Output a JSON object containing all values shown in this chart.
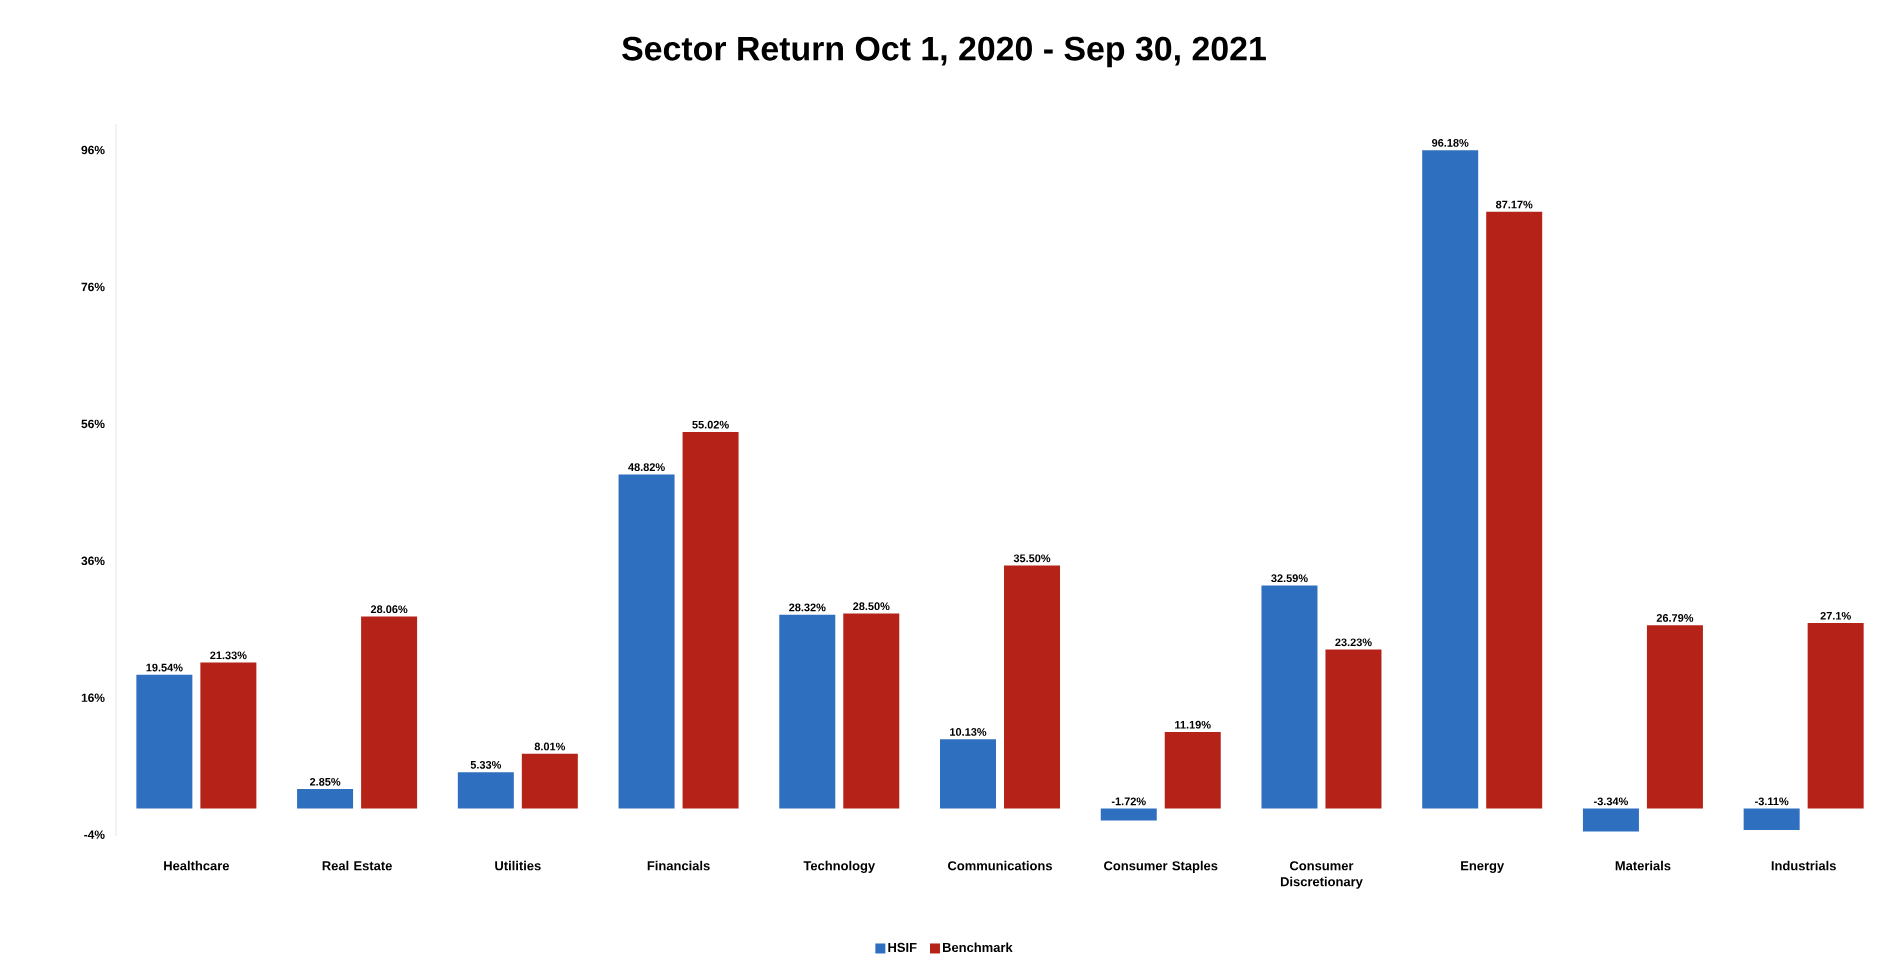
{
  "chart_data": {
    "type": "bar",
    "title": "Sector Return Oct 1, 2020 - Sep 30, 2021",
    "categories": [
      "Healthcare",
      "Real Estate",
      "Utilities",
      "Financials",
      "Technology",
      "Communications",
      "Consumer Staples",
      "Consumer Discretionary",
      "Energy",
      "Materials",
      "Industrials"
    ],
    "series": [
      {
        "name": "HSIF",
        "color": "#2e6fbf",
        "values": [
          19.54,
          2.85,
          5.33,
          48.82,
          28.32,
          10.13,
          -1.72,
          32.59,
          96.18,
          -3.34,
          -3.11
        ],
        "value_labels": [
          "19.54%",
          "2.85%",
          "5.33%",
          "48.82%",
          "28.32%",
          "10.13%",
          "-1.72%",
          "32.59%",
          "96.18%",
          "-3.34%",
          "-3.11%"
        ]
      },
      {
        "name": "Benchmark",
        "color": "#b52318",
        "values": [
          21.33,
          28.06,
          8.01,
          55.02,
          28.5,
          35.5,
          11.19,
          23.23,
          87.17,
          26.79,
          27.1
        ],
        "value_labels": [
          "21.33%",
          "28.06%",
          "8.01%",
          "55.02%",
          "28.50%",
          "35.50%",
          "11.19%",
          "23.23%",
          "87.17%",
          "26.79%",
          "27.1%"
        ]
      }
    ],
    "ylim": [
      -4,
      100
    ],
    "yticks": [
      {
        "value": -4,
        "label": "-4%"
      },
      {
        "value": 16,
        "label": "16%"
      },
      {
        "value": 36,
        "label": "36%"
      },
      {
        "value": 56,
        "label": "56%"
      },
      {
        "value": 76,
        "label": "76%"
      },
      {
        "value": 96,
        "label": "96%"
      }
    ],
    "legend": "bottom"
  }
}
